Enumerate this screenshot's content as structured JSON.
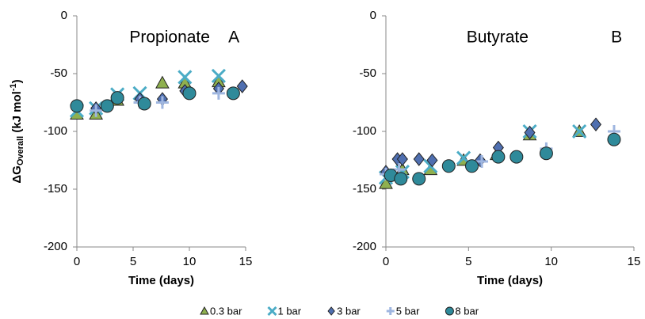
{
  "legend": [
    {
      "name": "0.3 bar",
      "color": "#8fb04f",
      "marker": "triangle"
    },
    {
      "name": "1 bar",
      "color": "#4bacc6",
      "marker": "x"
    },
    {
      "name": "3 bar",
      "color": "#4f6fb0",
      "marker": "diamond"
    },
    {
      "name": "5 bar",
      "color": "#9fb6e0",
      "marker": "plus"
    },
    {
      "name": "8 bar",
      "color": "#2f8a9a",
      "marker": "circle"
    }
  ],
  "chart_data": [
    {
      "type": "scatter",
      "annotation": "Propionate",
      "panel_label": "A",
      "x_label": "Time (days)",
      "y_label_parts": [
        "ΔG",
        "Overall",
        " (kJ mol",
        "-1",
        ")"
      ],
      "xlim": [
        0,
        15
      ],
      "ylim": [
        -200,
        0
      ],
      "xticks": [
        0,
        5,
        10,
        15
      ],
      "yticks": [
        -200,
        -150,
        -100,
        -50,
        0
      ],
      "series": [
        {
          "x": [
            0,
            1.7,
            3.6,
            7.6,
            9.6,
            12.6
          ],
          "values": [
            -85,
            -85,
            -73,
            -58,
            -58,
            -57
          ]
        },
        {
          "x": [
            0,
            1.7,
            3.6,
            5.6,
            9.6,
            12.6
          ],
          "values": [
            -82,
            -80,
            -68,
            -67,
            -53,
            -52
          ]
        },
        {
          "x": [
            1.7,
            5.6,
            7.6,
            9.6,
            12.6,
            14.7
          ],
          "values": [
            -80,
            -72,
            -72,
            -65,
            -63,
            -61
          ]
        },
        {
          "x": [
            1.7,
            5.6,
            7.6,
            12.6
          ],
          "values": [
            -82,
            -75,
            -75,
            -67
          ]
        },
        {
          "x": [
            0,
            2.7,
            3.6,
            6,
            10,
            13.9
          ],
          "values": [
            -78,
            -78,
            -71,
            -76,
            -67,
            -67
          ]
        }
      ]
    },
    {
      "type": "scatter",
      "annotation": "Butyrate",
      "panel_label": "B",
      "x_label": "Time (days)",
      "xlim": [
        0,
        15
      ],
      "ylim": [
        -200,
        0
      ],
      "xticks": [
        0,
        5,
        10,
        15
      ],
      "yticks": [
        -200,
        -150,
        -100,
        -50,
        0
      ],
      "series": [
        {
          "x": [
            0,
            1,
            2.7,
            4.7,
            6.7,
            8.7,
            11.7
          ],
          "values": [
            -145,
            -133,
            -133,
            -125,
            -120,
            -103,
            -100
          ]
        },
        {
          "x": [
            0,
            1,
            2.7,
            4.7,
            8.7,
            11.7
          ],
          "values": [
            -140,
            -135,
            -130,
            -123,
            -100,
            -100
          ]
        },
        {
          "x": [
            0,
            0.7,
            1,
            2,
            2.8,
            5.7,
            6.8,
            8.7,
            12.7
          ],
          "values": [
            -135,
            -124,
            -124,
            -124,
            -125,
            -125,
            -114,
            -101,
            -94
          ]
        },
        {
          "x": [
            0,
            0.8,
            5.8,
            9.7,
            13.8
          ],
          "values": [
            -137,
            -133,
            -126,
            -115,
            -100
          ]
        },
        {
          "x": [
            0.3,
            0.9,
            2,
            3.8,
            5.2,
            6.8,
            7.9,
            9.7,
            13.8
          ],
          "values": [
            -138,
            -141,
            -141,
            -130,
            -130,
            -122,
            -122,
            -119,
            -107
          ]
        }
      ]
    }
  ]
}
